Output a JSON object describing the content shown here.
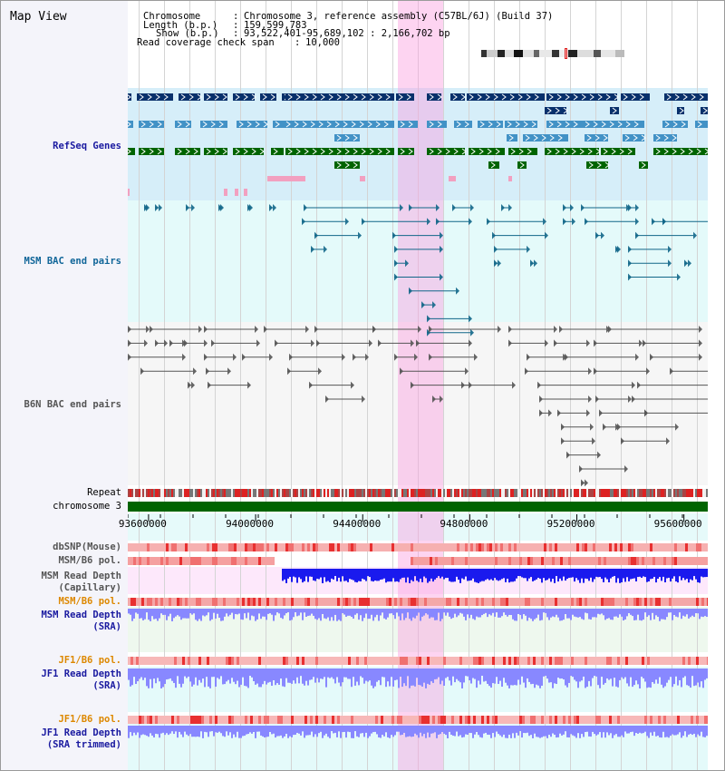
{
  "view": {
    "title": "Map View"
  },
  "info": {
    "chromosome_label": "Chromosome",
    "chromosome_value": "Chromosome 3, reference assembly (C57BL/6J) (Build 37)",
    "length_label": "Length (b.p.)",
    "length_value": "159,599,783",
    "show_label": "Show (b.p.)",
    "show_value": "93,522,401-95,689,102 : 2,166,702 bp",
    "coverage_label": "Read coverage check span",
    "coverage_value": "10,000"
  },
  "tracks": {
    "refseq": "RefSeq Genes",
    "msm_bac": "MSM BAC end pairs",
    "b6n_bac": "B6N BAC end pairs",
    "repeat": "Repeat",
    "chromosome": "chromosome 3",
    "dbsnp": "dbSNP(Mouse)",
    "msm_b6_pol_1": "MSM/B6 pol.",
    "msm_read_depth_cap_1": "MSM Read Depth",
    "msm_read_depth_cap_2": "(Capillary)",
    "msm_b6_pol_2": "MSM/B6 pol.",
    "msm_read_depth_sra_1": "MSM Read Depth",
    "msm_read_depth_sra_2": "(SRA)",
    "jf1_b6_pol_1": "JF1/B6 pol.",
    "jf1_read_depth_sra_1": "JF1 Read Depth",
    "jf1_read_depth_sra_2": "(SRA)",
    "jf1_b6_pol_2": "JF1/B6 pol.",
    "jf1_read_depth_trim_1": "JF1 Read Depth",
    "jf1_read_depth_trim_2": "(SRA trimmed)"
  },
  "axis": {
    "ticks": [
      "93600000",
      "94000000",
      "94400000",
      "94800000",
      "95200000",
      "95600000"
    ],
    "tick_values": [
      93600000,
      94000000,
      94400000,
      94800000,
      95200000,
      95600000
    ],
    "range": [
      93522401,
      95689102
    ],
    "highlight": [
      94530000,
      94700000
    ]
  },
  "colors": {
    "gene_dark": "#08306b",
    "gene_mid": "#4292c6",
    "gene_green": "#006400",
    "bac_teal": "#116688",
    "bac_gray": "#555555",
    "highlight": "#f9a0e0",
    "depth_blue": "#1a1aee",
    "depth_light": "#8888ff"
  }
}
